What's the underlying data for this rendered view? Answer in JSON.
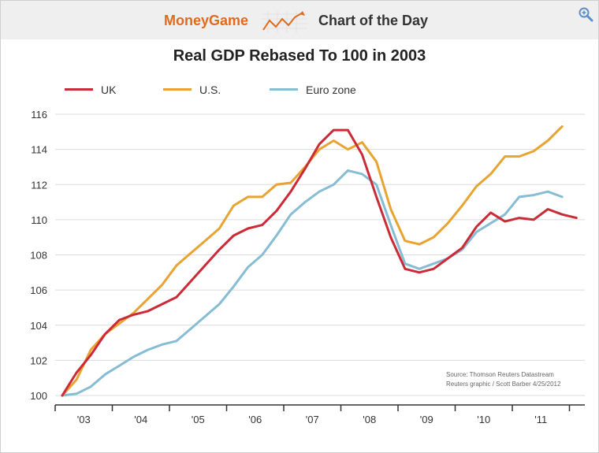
{
  "header": {
    "brand": "MoneyGame",
    "feature": "Chart of the Day",
    "logo_icon": "rising-chart-icon",
    "zoom_icon": "zoom-in-icon"
  },
  "source": {
    "line1": "Source: Thomson Reuters Datastream",
    "line2": "Reuters graphic / Scott Barber 4/25/2012"
  },
  "chart_data": {
    "type": "line",
    "title": "Real GDP Rebased To 100 in 2003",
    "xlabel": "",
    "ylabel": "",
    "x_quarters": [
      "2003-Q1",
      "2003-Q2",
      "2003-Q3",
      "2003-Q4",
      "2004-Q1",
      "2004-Q2",
      "2004-Q3",
      "2004-Q4",
      "2005-Q1",
      "2005-Q2",
      "2005-Q3",
      "2005-Q4",
      "2006-Q1",
      "2006-Q2",
      "2006-Q3",
      "2006-Q4",
      "2007-Q1",
      "2007-Q2",
      "2007-Q3",
      "2007-Q4",
      "2008-Q1",
      "2008-Q2",
      "2008-Q3",
      "2008-Q4",
      "2009-Q1",
      "2009-Q2",
      "2009-Q3",
      "2009-Q4",
      "2010-Q1",
      "2010-Q2",
      "2010-Q3",
      "2010-Q4",
      "2011-Q1",
      "2011-Q2",
      "2011-Q3",
      "2011-Q4",
      "2012-Q1"
    ],
    "x_ticks": [
      "'03",
      "'04",
      "'05",
      "'06",
      "'07",
      "'08",
      "'09",
      "'10",
      "'11"
    ],
    "ylim": [
      100,
      116
    ],
    "yticks": [
      100,
      102,
      104,
      106,
      108,
      110,
      112,
      114,
      116
    ],
    "grid": true,
    "legend_position": "top-left",
    "series": [
      {
        "name": "UK",
        "color": "#cc2a36",
        "values": [
          100.0,
          101.3,
          102.3,
          103.5,
          104.3,
          104.6,
          104.8,
          105.2,
          105.6,
          106.5,
          107.4,
          108.3,
          109.1,
          109.5,
          109.7,
          110.5,
          111.6,
          112.9,
          114.3,
          115.1,
          115.1,
          113.7,
          111.3,
          109.0,
          107.2,
          107.0,
          107.2,
          107.8,
          108.4,
          109.6,
          110.4,
          109.9,
          110.1,
          110.0,
          110.6,
          110.3,
          110.1
        ]
      },
      {
        "name": "U.S.",
        "color": "#e8a331",
        "values": [
          100.0,
          100.9,
          102.6,
          103.5,
          104.1,
          104.7,
          105.5,
          106.3,
          107.4,
          108.1,
          108.8,
          109.5,
          110.8,
          111.3,
          111.3,
          112.0,
          112.1,
          113.0,
          114.0,
          114.5,
          114.0,
          114.4,
          113.3,
          110.6,
          108.8,
          108.6,
          109.0,
          109.8,
          110.8,
          111.9,
          112.6,
          113.6,
          113.6,
          113.9,
          114.5,
          115.3
        ]
      },
      {
        "name": "Euro zone",
        "color": "#86bcd4",
        "values": [
          100.0,
          100.1,
          100.5,
          101.2,
          101.7,
          102.2,
          102.6,
          102.9,
          103.1,
          103.8,
          104.5,
          105.2,
          106.2,
          107.3,
          108.0,
          109.1,
          110.3,
          111.0,
          111.6,
          112.0,
          112.8,
          112.6,
          112.0,
          109.7,
          107.5,
          107.2,
          107.5,
          107.8,
          108.3,
          109.3,
          109.8,
          110.3,
          111.3,
          111.4,
          111.6,
          111.3
        ]
      }
    ]
  }
}
